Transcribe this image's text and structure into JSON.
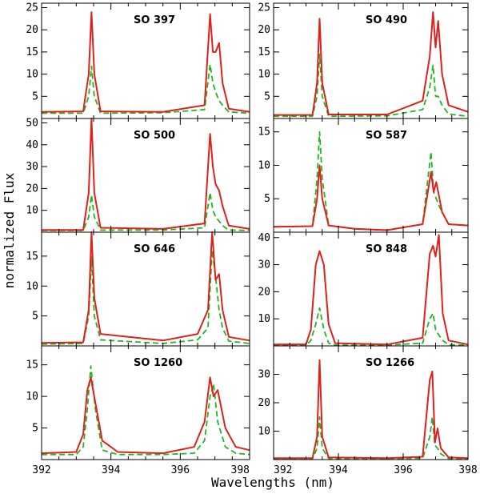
{
  "figure": {
    "xlabel": "Wavelengths (nm)",
    "ylabel": "normalized Flux",
    "colors": {
      "solid": "#e0201a",
      "dashed": "#22b522",
      "frame": "#000000"
    }
  },
  "chart_data": [
    {
      "type": "line",
      "title": "SO 397",
      "xlim": [
        392,
        398
      ],
      "ylim": [
        0,
        26
      ],
      "yticks": [
        5,
        10,
        15,
        20,
        25
      ],
      "ytick_labels": [
        "5",
        "10",
        "15",
        "20",
        "25"
      ],
      "x": [
        392,
        393.2,
        393.36,
        393.44,
        393.52,
        393.7,
        395.5,
        396.7,
        396.86,
        396.94,
        397.02,
        397.12,
        397.22,
        397.4,
        398
      ],
      "series": [
        {
          "style": "solid",
          "values": [
            1.5,
            1.6,
            10,
            24,
            10,
            1.6,
            1.5,
            3,
            23.5,
            15,
            15,
            17,
            8,
            2.2,
            1.5
          ]
        },
        {
          "style": "dashed",
          "values": [
            1.2,
            1.2,
            5,
            11.8,
            5,
            1.2,
            1.3,
            2,
            12.2,
            8,
            6,
            4,
            3,
            1.5,
            1.2
          ]
        }
      ]
    },
    {
      "type": "line",
      "title": "SO 490",
      "xlim": [
        392,
        398
      ],
      "ylim": [
        0,
        26
      ],
      "yticks": [
        5,
        10,
        15,
        20,
        25
      ],
      "ytick_labels": [
        "5",
        "10",
        "15",
        "20",
        "25"
      ],
      "x": [
        392,
        393.2,
        393.34,
        393.42,
        393.5,
        393.7,
        395.5,
        396.6,
        396.82,
        396.92,
        397.0,
        397.08,
        397.2,
        397.4,
        398
      ],
      "series": [
        {
          "style": "solid",
          "values": [
            0.8,
            0.8,
            8,
            22.5,
            8,
            0.9,
            0.9,
            4,
            14,
            24,
            16,
            22,
            10,
            3,
            1.5
          ]
        },
        {
          "style": "dashed",
          "values": [
            0.5,
            0.5,
            5,
            14.5,
            5,
            0.5,
            0.6,
            2,
            7,
            12,
            5,
            5,
            3,
            1,
            0.5
          ]
        }
      ]
    },
    {
      "type": "line",
      "title": "SO 500",
      "xlim": [
        392,
        398
      ],
      "ylim": [
        0,
        52
      ],
      "yticks": [
        10,
        20,
        30,
        40,
        50
      ],
      "ytick_labels": [
        "10",
        "20",
        "30",
        "40",
        "50"
      ],
      "x": [
        392,
        393.2,
        393.36,
        393.44,
        393.52,
        393.7,
        395.5,
        396.7,
        396.86,
        396.94,
        397.02,
        397.12,
        397.22,
        397.4,
        398
      ],
      "series": [
        {
          "style": "solid",
          "values": [
            1,
            1,
            18,
            52,
            18,
            2,
            1.5,
            4,
            45,
            30,
            22,
            19,
            12,
            3,
            1.5
          ]
        },
        {
          "style": "dashed",
          "values": [
            0.8,
            0.8,
            7,
            17,
            7,
            1,
            1,
            2,
            18,
            10,
            7,
            5,
            3,
            1,
            0.8
          ]
        }
      ]
    },
    {
      "type": "line",
      "title": "SO 587",
      "xlim": [
        392,
        398
      ],
      "ylim": [
        0,
        17
      ],
      "yticks": [
        5,
        10,
        15
      ],
      "ytick_labels": [
        "5",
        "10",
        "15"
      ],
      "x": [
        392,
        393.2,
        393.34,
        393.42,
        393.5,
        393.7,
        394.5,
        395.5,
        396.6,
        396.86,
        396.94,
        397.02,
        397.1,
        397.2,
        397.4,
        398
      ],
      "series": [
        {
          "style": "solid",
          "values": [
            0.8,
            0.9,
            5,
            10,
            5,
            1,
            0.5,
            0.3,
            1.2,
            9,
            6,
            7.5,
            5.5,
            3,
            1.2,
            1
          ]
        },
        {
          "style": "dashed",
          "values": [
            0.8,
            0.9,
            8,
            15,
            8,
            1,
            0.5,
            0.3,
            1.2,
            12,
            6,
            5,
            4,
            3,
            1.2,
            1
          ]
        }
      ]
    },
    {
      "type": "line",
      "title": "SO 646",
      "xlim": [
        392,
        398
      ],
      "ylim": [
        0,
        19
      ],
      "yticks": [
        5,
        10,
        15
      ],
      "ytick_labels": [
        "5",
        "10",
        "15"
      ],
      "x": [
        392,
        393.2,
        393.36,
        393.44,
        393.52,
        393.7,
        395.5,
        396.5,
        396.8,
        396.92,
        397.02,
        397.12,
        397.22,
        397.4,
        398
      ],
      "series": [
        {
          "style": "solid",
          "values": [
            0.5,
            0.6,
            6,
            19,
            8,
            2,
            0.9,
            2,
            6,
            19,
            11,
            12,
            6,
            1.5,
            0.9
          ]
        },
        {
          "style": "dashed",
          "values": [
            0.3,
            0.4,
            5,
            14.8,
            5,
            1,
            0.4,
            1,
            3,
            16,
            11.5,
            6,
            3,
            0.8,
            0.4
          ]
        }
      ]
    },
    {
      "type": "line",
      "title": "SO 848",
      "xlim": [
        392,
        398
      ],
      "ylim": [
        0,
        42
      ],
      "yticks": [
        10,
        20,
        30,
        40
      ],
      "ytick_labels": [
        "10",
        "20",
        "30",
        "40"
      ],
      "x": [
        392,
        393.0,
        393.15,
        393.3,
        393.42,
        393.55,
        393.7,
        393.9,
        395.5,
        396.6,
        396.82,
        396.92,
        397.0,
        397.1,
        397.22,
        397.4,
        398
      ],
      "series": [
        {
          "style": "solid",
          "values": [
            0.5,
            0.6,
            6,
            30,
            35,
            30,
            8,
            1,
            0.5,
            3,
            34,
            37,
            33,
            41,
            12,
            2,
            0.5
          ]
        },
        {
          "style": "dashed",
          "values": [
            0.3,
            0.3,
            2,
            8,
            14,
            6,
            1,
            0.3,
            0.3,
            1,
            10,
            12,
            6,
            4,
            2,
            0.4,
            0.3
          ]
        }
      ]
    },
    {
      "type": "line",
      "title": "SO 1260",
      "xlim": [
        392,
        398
      ],
      "ylim": [
        0,
        18
      ],
      "yticks": [
        5,
        10,
        15
      ],
      "ytick_labels": [
        "5",
        "10",
        "15"
      ],
      "x": [
        392,
        393.0,
        393.2,
        393.32,
        393.42,
        393.55,
        393.75,
        394.2,
        395.5,
        396.4,
        396.7,
        396.86,
        396.96,
        397.08,
        397.3,
        397.6,
        398
      ],
      "series": [
        {
          "style": "solid",
          "values": [
            1,
            1.2,
            4,
            11,
            13,
            9,
            3,
            1.2,
            1,
            2,
            6,
            13,
            10,
            11,
            5,
            2,
            1.5
          ]
        },
        {
          "style": "dashed",
          "values": [
            0.8,
            0.8,
            2,
            8,
            14.8,
            8,
            1.5,
            0.8,
            0.8,
            1,
            3,
            10,
            12,
            6,
            2,
            1,
            0.8
          ]
        }
      ]
    },
    {
      "type": "line",
      "title": "SO 1266",
      "xlim": [
        392,
        398
      ],
      "ylim": [
        0,
        40
      ],
      "yticks": [
        10,
        20,
        30
      ],
      "ytick_labels": [
        "10",
        "20",
        "30"
      ],
      "x": [
        392,
        393.2,
        393.34,
        393.42,
        393.5,
        393.7,
        395.5,
        396.6,
        396.82,
        396.9,
        396.98,
        397.06,
        397.16,
        397.4,
        398
      ],
      "series": [
        {
          "style": "solid",
          "values": [
            0.5,
            0.5,
            8,
            35,
            8,
            0.8,
            0.5,
            1,
            28,
            31,
            6,
            11,
            4,
            0.8,
            0.5
          ]
        },
        {
          "style": "dashed",
          "values": [
            0.3,
            0.3,
            4,
            15,
            4,
            0.4,
            0.3,
            0.5,
            8,
            15,
            5,
            4,
            2,
            0.4,
            0.3
          ]
        }
      ]
    }
  ],
  "xaxis": {
    "ticks": [
      392,
      394,
      396,
      398
    ],
    "tick_labels": [
      "392",
      "394",
      "396",
      "398"
    ]
  }
}
